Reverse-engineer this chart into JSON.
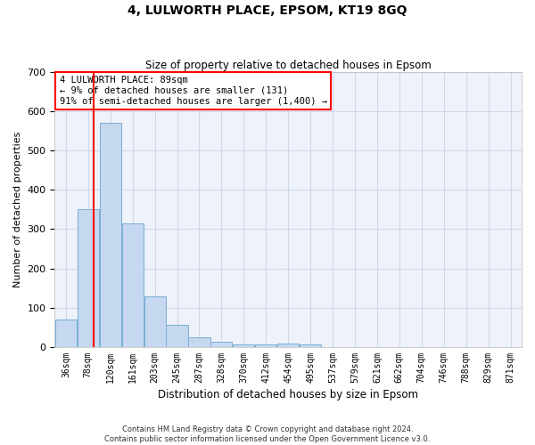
{
  "title": "4, LULWORTH PLACE, EPSOM, KT19 8GQ",
  "subtitle": "Size of property relative to detached houses in Epsom",
  "xlabel": "Distribution of detached houses by size in Epsom",
  "ylabel": "Number of detached properties",
  "bar_labels": [
    "36sqm",
    "78sqm",
    "120sqm",
    "161sqm",
    "203sqm",
    "245sqm",
    "287sqm",
    "328sqm",
    "370sqm",
    "412sqm",
    "454sqm",
    "495sqm",
    "537sqm",
    "579sqm",
    "621sqm",
    "662sqm",
    "704sqm",
    "746sqm",
    "788sqm",
    "829sqm",
    "871sqm"
  ],
  "bar_values": [
    70,
    350,
    570,
    315,
    128,
    57,
    25,
    13,
    7,
    7,
    10,
    7,
    0,
    0,
    0,
    0,
    0,
    0,
    0,
    0,
    0
  ],
  "bar_color": "#c5d8f0",
  "bar_edge_color": "#7aaed6",
  "grid_color": "#d0d8e8",
  "background_color": "#eef2fa",
  "vline_x_idx": 1.26,
  "vline_color": "red",
  "ylim": [
    0,
    700
  ],
  "yticks": [
    0,
    100,
    200,
    300,
    400,
    500,
    600,
    700
  ],
  "annotation_text": "4 LULWORTH PLACE: 89sqm\n← 9% of detached houses are smaller (131)\n91% of semi-detached houses are larger (1,400) →",
  "annotation_box_color": "white",
  "annotation_box_edge": "red",
  "footer_line1": "Contains HM Land Registry data © Crown copyright and database right 2024.",
  "footer_line2": "Contains public sector information licensed under the Open Government Licence v3.0.",
  "bin_width": 1.0,
  "n_bars": 21
}
